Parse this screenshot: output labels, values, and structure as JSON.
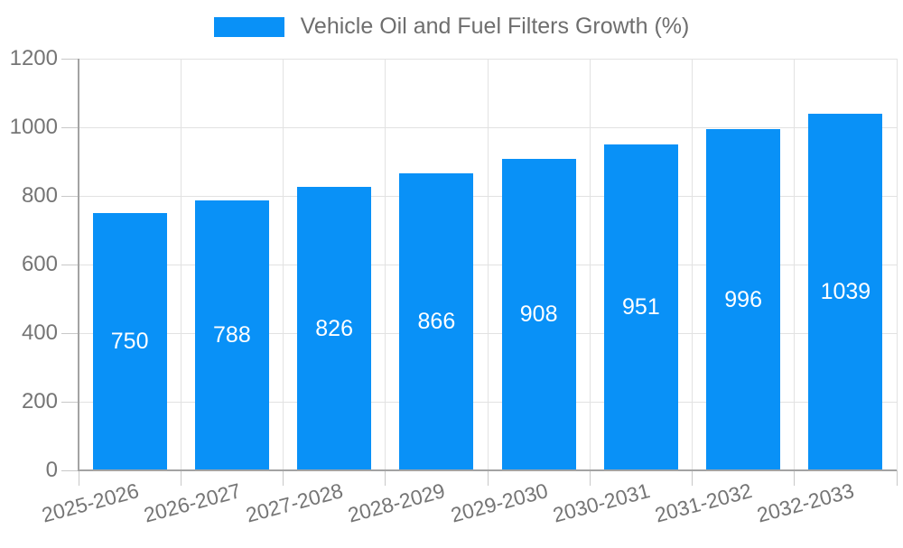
{
  "chart_data": {
    "type": "bar",
    "title": "Vehicle Oil and Fuel Filters Growth (%)",
    "categories": [
      "2025-2026",
      "2026-2027",
      "2027-2028",
      "2028-2029",
      "2029-2030",
      "2030-2031",
      "2031-2032",
      "2032-2033"
    ],
    "values": [
      750,
      788,
      826,
      866,
      908,
      951,
      996,
      1039
    ],
    "xlabel": "",
    "ylabel": "",
    "ylim": [
      0,
      1200
    ],
    "yticks": [
      0,
      200,
      400,
      600,
      800,
      1000,
      1200
    ],
    "grid": true,
    "legend_position": "top",
    "value_labels": "inside-center"
  },
  "legend": {
    "swatch": "bar-color-swatch",
    "label": "Vehicle Oil and Fuel Filters Growth (%)"
  },
  "colors": {
    "bar": "#0991f7",
    "grid": "#e2e2e2",
    "axis": "#a3a3a3",
    "tick": "#c8c8c8",
    "tick_label": "#757575",
    "legend_text": "#6e6e6e",
    "value_label": "#ffffff",
    "background": "#ffffff"
  }
}
